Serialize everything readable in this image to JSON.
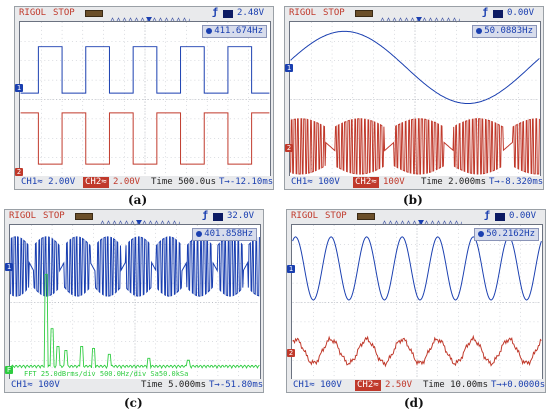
{
  "panels": [
    {
      "id": "a",
      "caption": "(a)",
      "brand": "RIGOL",
      "mode": "STOP",
      "trigger_level": "2.48V",
      "frequency": "411.674Hz",
      "ch1_scale": "CH1≈  2.00V",
      "ch2_label": "CH2≈",
      "ch2_value": "2.00V",
      "timebase": "Time 500.0us",
      "time_position": "T→-12.10ms",
      "fft_info": "",
      "ch2_enabled": true
    },
    {
      "id": "b",
      "caption": "(b)",
      "brand": "RIGOL",
      "mode": "STOP",
      "trigger_level": "0.00V",
      "frequency": "50.0883Hz",
      "ch1_scale": "CH1≈  100V",
      "ch2_label": "CH2≈",
      "ch2_value": "100V",
      "timebase": "Time 2.000ms",
      "time_position": "T→-8.320ms",
      "fft_info": "",
      "ch2_enabled": true
    },
    {
      "id": "c",
      "caption": "(c)",
      "brand": "RIGOL",
      "mode": "STOP",
      "trigger_level": "32.0V",
      "frequency": "401.858Hz",
      "ch1_scale": "CH1≈  100V",
      "ch2_label": "",
      "ch2_value": "",
      "timebase": "Time 5.000ms",
      "time_position": "T→-51.80ms",
      "fft_info": "FFT 25.0dBrms/div  500.0Hz/div  Sa50.0kSa",
      "ch2_enabled": false
    },
    {
      "id": "d",
      "caption": "(d)",
      "brand": "RIGOL",
      "mode": "STOP",
      "trigger_level": "0.00V",
      "frequency": "50.2162Hz",
      "ch1_scale": "CH1≈  100V",
      "ch2_label": "CH2≈",
      "ch2_value": "2.50V",
      "timebase": "Time 10.00ms",
      "time_position": "T→+0.0000s",
      "fft_info": "",
      "ch2_enabled": true
    }
  ],
  "colors": {
    "ch1": "#1a3fb0",
    "ch2": "#c0392b",
    "fft": "#2ecc40"
  },
  "icons": {
    "trigger": "trigger-edge-icon",
    "battery": "battery-icon",
    "memory": "memory-depth-icon"
  }
}
